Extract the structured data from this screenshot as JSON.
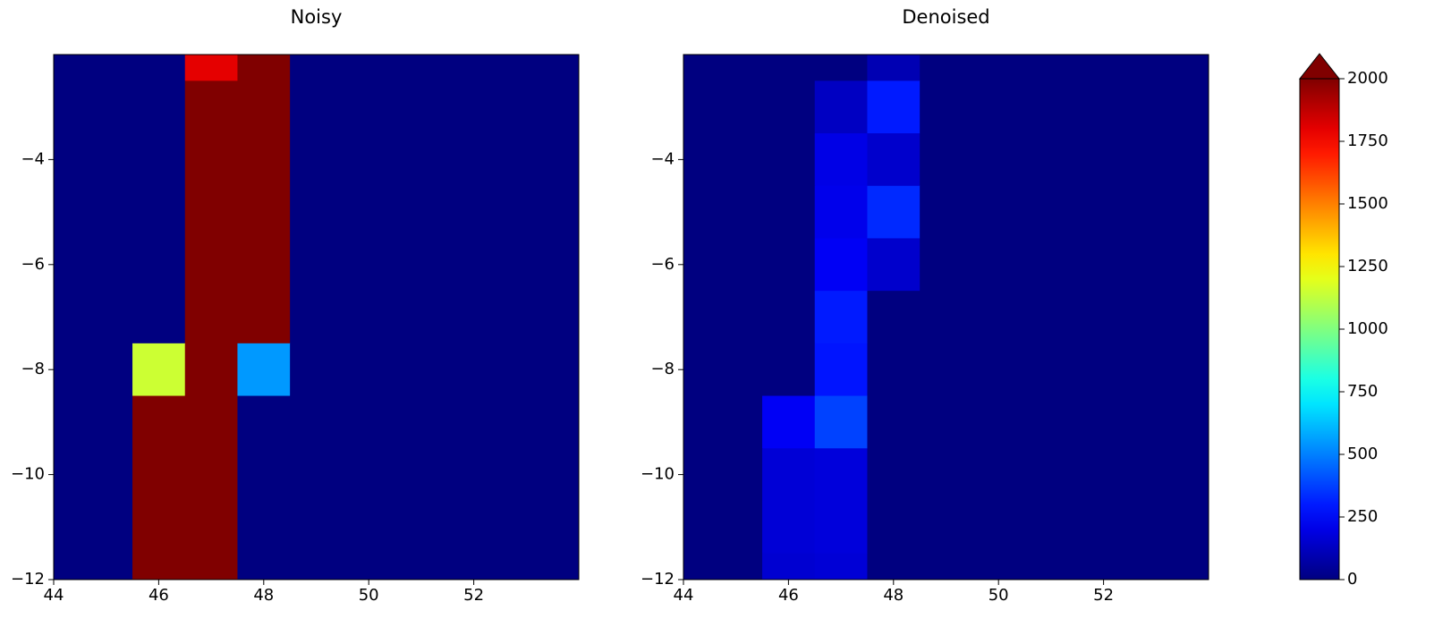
{
  "chart_data": [
    {
      "type": "heatmap",
      "title": "Noisy",
      "x": [
        44,
        45,
        46,
        47,
        48,
        49,
        50,
        51,
        52,
        53,
        54
      ],
      "y": [
        -2,
        -3,
        -4,
        -5,
        -6,
        -7,
        -8,
        -9,
        -10,
        -11,
        -12
      ],
      "values": [
        [
          0,
          0,
          0,
          1800,
          2000,
          0,
          0,
          0,
          0,
          0,
          0
        ],
        [
          0,
          0,
          0,
          2000,
          2000,
          0,
          0,
          0,
          0,
          0,
          0
        ],
        [
          0,
          0,
          0,
          2000,
          2000,
          0,
          0,
          0,
          0,
          0,
          0
        ],
        [
          0,
          0,
          0,
          2000,
          2000,
          0,
          0,
          0,
          0,
          0,
          0
        ],
        [
          0,
          0,
          0,
          2000,
          2000,
          0,
          0,
          0,
          0,
          0,
          0
        ],
        [
          0,
          0,
          0,
          2000,
          2000,
          0,
          0,
          0,
          0,
          0,
          0
        ],
        [
          0,
          0,
          1150,
          2000,
          550,
          0,
          0,
          0,
          0,
          0,
          0
        ],
        [
          0,
          0,
          2000,
          2000,
          0,
          0,
          0,
          0,
          0,
          0,
          0
        ],
        [
          0,
          0,
          2000,
          2000,
          0,
          0,
          0,
          0,
          0,
          0,
          0
        ],
        [
          0,
          0,
          2000,
          2000,
          0,
          0,
          0,
          0,
          0,
          0,
          0
        ],
        [
          0,
          0,
          2000,
          2000,
          0,
          0,
          0,
          0,
          0,
          0,
          0
        ]
      ],
      "xlim": [
        44,
        54
      ],
      "ylim": [
        -12,
        -2
      ],
      "xticks": [
        44,
        46,
        48,
        50,
        52
      ],
      "yticks": [
        {
          "value": -12,
          "label": "−12"
        },
        {
          "value": -10,
          "label": "−10"
        },
        {
          "value": -8,
          "label": "−8"
        },
        {
          "value": -6,
          "label": "−6"
        },
        {
          "value": -4,
          "label": "−4"
        }
      ]
    },
    {
      "type": "heatmap",
      "title": "Denoised",
      "x": [
        44,
        45,
        46,
        47,
        48,
        49,
        50,
        51,
        52,
        53,
        54
      ],
      "y": [
        -2,
        -3,
        -4,
        -5,
        -6,
        -7,
        -8,
        -9,
        -10,
        -11,
        -12
      ],
      "values": [
        [
          0,
          0,
          0,
          0,
          100,
          0,
          0,
          0,
          0,
          0,
          0
        ],
        [
          0,
          0,
          0,
          130,
          300,
          0,
          0,
          0,
          0,
          0,
          0
        ],
        [
          0,
          0,
          0,
          200,
          150,
          0,
          0,
          0,
          0,
          0,
          0
        ],
        [
          0,
          0,
          0,
          210,
          330,
          0,
          0,
          0,
          0,
          0,
          0
        ],
        [
          0,
          0,
          0,
          230,
          150,
          0,
          0,
          0,
          0,
          0,
          0
        ],
        [
          0,
          0,
          0,
          300,
          0,
          0,
          0,
          0,
          0,
          0,
          0
        ],
        [
          0,
          0,
          0,
          290,
          0,
          0,
          0,
          0,
          0,
          0,
          0
        ],
        [
          0,
          0,
          230,
          380,
          0,
          0,
          0,
          0,
          0,
          0,
          0
        ],
        [
          0,
          0,
          170,
          180,
          0,
          0,
          0,
          0,
          0,
          0,
          0
        ],
        [
          0,
          0,
          170,
          180,
          0,
          0,
          0,
          0,
          0,
          0,
          0
        ],
        [
          0,
          0,
          160,
          170,
          0,
          0,
          0,
          0,
          0,
          0,
          0
        ]
      ],
      "xlim": [
        44,
        54
      ],
      "ylim": [
        -12,
        -2
      ],
      "xticks": [
        44,
        46,
        48,
        50,
        52
      ],
      "yticks": [
        {
          "value": -12,
          "label": "−12"
        },
        {
          "value": -10,
          "label": "−10"
        },
        {
          "value": -8,
          "label": "−8"
        },
        {
          "value": -6,
          "label": "−6"
        },
        {
          "value": -4,
          "label": "−4"
        }
      ]
    }
  ],
  "colorbar": {
    "cmap": "jet",
    "clim": [
      0,
      2000
    ],
    "extend": "max",
    "ticks": [
      0,
      250,
      500,
      750,
      1000,
      1250,
      1500,
      1750,
      2000
    ]
  }
}
